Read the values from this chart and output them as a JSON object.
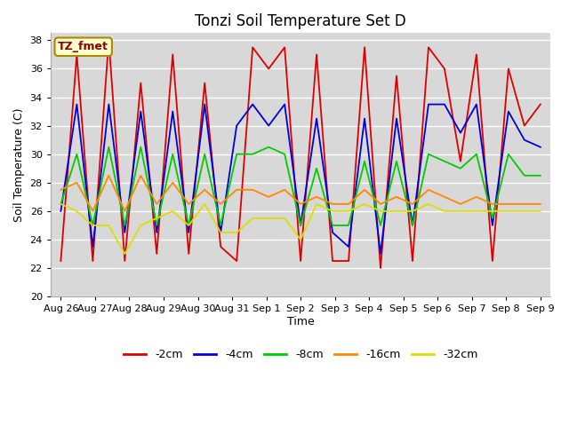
{
  "title": "Tonzi Soil Temperature Set D",
  "xlabel": "Time",
  "ylabel": "Soil Temperature (C)",
  "ylim": [
    20,
    38.5
  ],
  "yticks": [
    20,
    22,
    24,
    26,
    28,
    30,
    32,
    34,
    36,
    38
  ],
  "x_labels": [
    "Aug 26",
    "Aug 27",
    "Aug 28",
    "Aug 29",
    "Aug 30",
    "Aug 31",
    "Sep 1",
    "Sep 2",
    "Sep 3",
    "Sep 4",
    "Sep 5",
    "Sep 6",
    "Sep 7",
    "Sep 8",
    "Sep 9"
  ],
  "series": {
    "-2cm": {
      "color": "#dd0000",
      "values": [
        22.5,
        37.0,
        22.5,
        38.0,
        22.5,
        35.0,
        23.0,
        37.0,
        23.0,
        35.0,
        23.5,
        22.5,
        37.5,
        36.0,
        37.5,
        22.5,
        37.0,
        22.5,
        22.5,
        37.5,
        22.0,
        35.5,
        22.5,
        37.5,
        36.0,
        29.5,
        37.0,
        22.5,
        36.0,
        32.0,
        33.5
      ]
    },
    "-4cm": {
      "color": "#0000dd",
      "values": [
        26.0,
        33.5,
        23.5,
        33.5,
        24.5,
        33.0,
        24.5,
        33.0,
        24.5,
        33.5,
        24.5,
        32.0,
        33.5,
        32.0,
        33.5,
        25.0,
        32.5,
        24.5,
        23.5,
        32.5,
        23.0,
        32.5,
        25.0,
        33.5,
        33.5,
        31.5,
        33.5,
        25.0,
        33.0,
        31.0,
        30.5
      ]
    },
    "-8cm": {
      "color": "#00cc00",
      "values": [
        26.5,
        30.0,
        25.0,
        30.5,
        25.0,
        30.5,
        25.0,
        30.0,
        25.0,
        30.0,
        25.0,
        30.0,
        30.0,
        30.5,
        30.0,
        25.0,
        29.0,
        25.0,
        25.0,
        29.5,
        25.0,
        29.5,
        25.0,
        30.0,
        29.5,
        29.0,
        30.0,
        25.5,
        30.0,
        28.5,
        28.5
      ]
    },
    "-16cm": {
      "color": "#ff8800",
      "values": [
        27.5,
        28.0,
        26.0,
        28.5,
        26.0,
        28.5,
        26.5,
        28.0,
        26.5,
        27.5,
        26.5,
        27.5,
        27.5,
        27.0,
        27.5,
        26.5,
        27.0,
        26.5,
        26.5,
        27.5,
        26.5,
        27.0,
        26.5,
        27.5,
        27.0,
        26.5,
        27.0,
        26.5,
        26.5,
        26.5,
        26.5
      ]
    },
    "-32cm": {
      "color": "#dddd00",
      "values": [
        26.5,
        26.0,
        25.0,
        25.0,
        23.0,
        25.0,
        25.5,
        26.0,
        25.0,
        26.5,
        24.5,
        24.5,
        25.5,
        25.5,
        25.5,
        24.0,
        26.5,
        26.0,
        26.0,
        26.5,
        26.0,
        26.0,
        26.0,
        26.5,
        26.0,
        26.0,
        26.0,
        26.0,
        26.0,
        26.0,
        26.0
      ]
    }
  },
  "legend_label": "TZ_fmet",
  "fig_facecolor": "#ffffff",
  "plot_facecolor": "#d8d8d8",
  "grid_color": "#ffffff",
  "title_fontsize": 12,
  "axis_label_fontsize": 9,
  "tick_fontsize": 8,
  "legend_fontsize": 9
}
